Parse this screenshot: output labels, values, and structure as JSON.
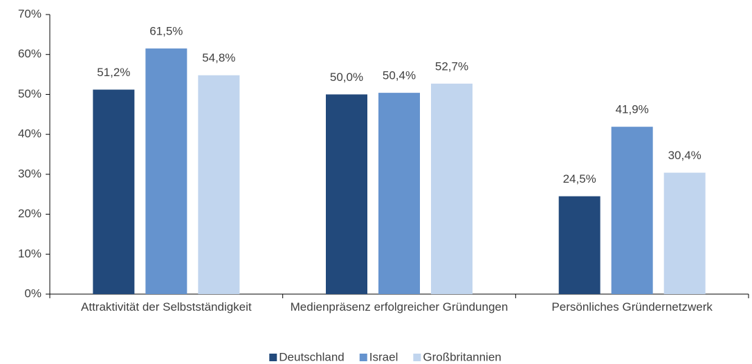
{
  "chart_data": {
    "type": "bar",
    "categories": [
      "Attraktivität der Selbstständigkeit",
      "Medienpräsenz erfolgreicher Gründungen",
      "Persönliches Gründernetzwerk"
    ],
    "series": [
      {
        "name": "Deutschland",
        "color": "#22497b",
        "values": [
          51.2,
          50.0,
          24.5
        ],
        "value_labels": [
          "51,2%",
          "50,0%",
          "24,5%"
        ]
      },
      {
        "name": "Israel",
        "color": "#6593ce",
        "values": [
          61.5,
          50.4,
          41.9
        ],
        "value_labels": [
          "61,5%",
          "50,4%",
          "41,9%"
        ]
      },
      {
        "name": "Großbritannien",
        "color": "#c1d5ee",
        "values": [
          54.8,
          52.7,
          30.4
        ],
        "value_labels": [
          "54,8%",
          "52,7%",
          "30,4%"
        ]
      }
    ],
    "ylim": [
      0,
      70
    ],
    "yticks": [
      {
        "value": 0,
        "label": "0%"
      },
      {
        "value": 10,
        "label": "10%"
      },
      {
        "value": 20,
        "label": "20%"
      },
      {
        "value": 30,
        "label": "30%"
      },
      {
        "value": 40,
        "label": "40%"
      },
      {
        "value": 50,
        "label": "50%"
      },
      {
        "value": 60,
        "label": "60%"
      },
      {
        "value": 70,
        "label": "70%"
      }
    ],
    "legend": "bottom"
  }
}
